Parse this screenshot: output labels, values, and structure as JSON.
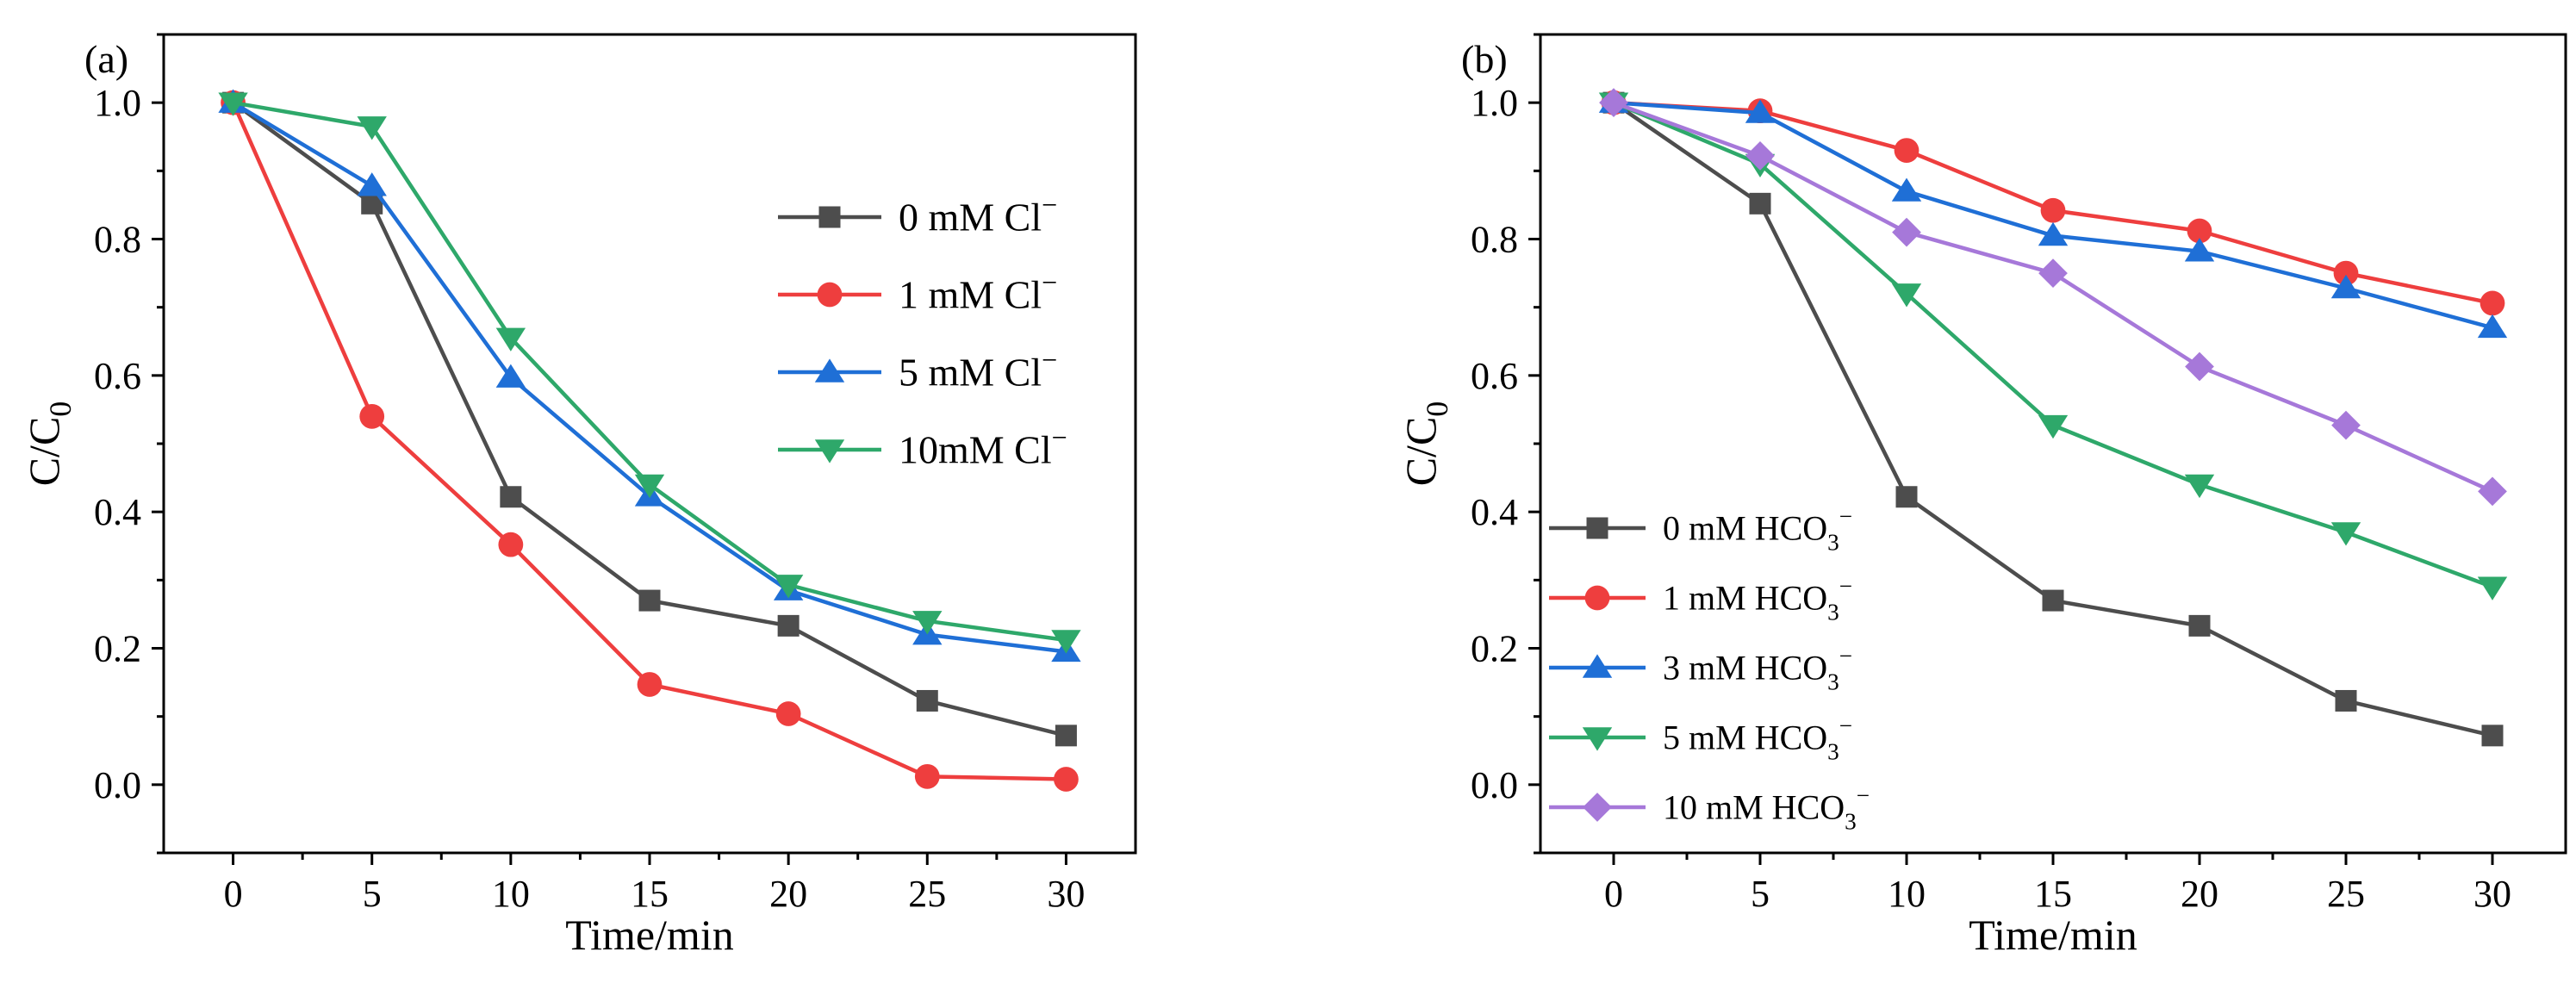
{
  "chart_data": [
    {
      "type": "line",
      "panel_label": "(a)",
      "xlabel": "Time/min",
      "ylabel": "C/C",
      "ylabel_sub": "0",
      "x": [
        0,
        5,
        10,
        15,
        20,
        25,
        30
      ],
      "xlim": [
        -2.5,
        32.5
      ],
      "ylim": [
        -0.1,
        1.1
      ],
      "xticks": [
        "0",
        "5",
        "10",
        "15",
        "20",
        "25",
        "30"
      ],
      "yticks": [
        "0.0",
        "0.2",
        "0.4",
        "0.6",
        "0.8",
        "1.0"
      ],
      "legend_position": "center-right",
      "series": [
        {
          "name": "0 mM Cl",
          "sup": "−",
          "sub": "",
          "color": "#4d4d4d",
          "marker": "square",
          "values": [
            1.0,
            0.852,
            0.422,
            0.27,
            0.233,
            0.123,
            0.072
          ]
        },
        {
          "name": "1 mM Cl",
          "sup": "−",
          "sub": "",
          "color": "#ee3e3e",
          "marker": "circle",
          "values": [
            1.0,
            0.54,
            0.352,
            0.147,
            0.104,
            0.012,
            0.008
          ]
        },
        {
          "name": "5 mM Cl",
          "sup": "−",
          "sub": "",
          "color": "#1f6fd6",
          "marker": "triangle-up",
          "values": [
            1.0,
            0.878,
            0.597,
            0.423,
            0.285,
            0.22,
            0.195
          ]
        },
        {
          "name": "10mM Cl",
          "sup": "−",
          "sub": "",
          "color": "#2ea86a",
          "marker": "triangle-down",
          "values": [
            1.0,
            0.965,
            0.655,
            0.44,
            0.293,
            0.24,
            0.212
          ]
        }
      ]
    },
    {
      "type": "line",
      "panel_label": "(b)",
      "xlabel": "Time/min",
      "ylabel": "C/C",
      "ylabel_sub": "0",
      "x": [
        0,
        5,
        10,
        15,
        20,
        25,
        30
      ],
      "xlim": [
        -2.5,
        32.5
      ],
      "ylim": [
        -0.1,
        1.1
      ],
      "xticks": [
        "0",
        "5",
        "10",
        "15",
        "20",
        "25",
        "30"
      ],
      "yticks": [
        "0.0",
        "0.2",
        "0.4",
        "0.6",
        "0.8",
        "1.0"
      ],
      "legend_position": "bottom-left",
      "series": [
        {
          "name": "0 mM HCO",
          "sup": "−",
          "sub": "3",
          "color": "#4d4d4d",
          "marker": "square",
          "values": [
            1.0,
            0.852,
            0.422,
            0.27,
            0.233,
            0.123,
            0.072
          ]
        },
        {
          "name": "1 mM HCO",
          "sup": "−",
          "sub": "3",
          "color": "#ee3e3e",
          "marker": "circle",
          "values": [
            1.0,
            0.988,
            0.93,
            0.842,
            0.812,
            0.75,
            0.706
          ]
        },
        {
          "name": "3 mM HCO",
          "sup": "−",
          "sub": "3",
          "color": "#1f6fd6",
          "marker": "triangle-up",
          "values": [
            1.0,
            0.985,
            0.87,
            0.805,
            0.782,
            0.728,
            0.67
          ]
        },
        {
          "name": "5 mM HCO",
          "sup": "−",
          "sub": "3",
          "color": "#2ea86a",
          "marker": "triangle-down",
          "values": [
            1.0,
            0.91,
            0.72,
            0.527,
            0.44,
            0.37,
            0.29
          ]
        },
        {
          "name": "10 mM HCO",
          "sup": "−",
          "sub": "3",
          "color": "#a678d9",
          "marker": "diamond",
          "values": [
            1.0,
            0.922,
            0.81,
            0.75,
            0.613,
            0.527,
            0.43
          ]
        }
      ]
    }
  ]
}
